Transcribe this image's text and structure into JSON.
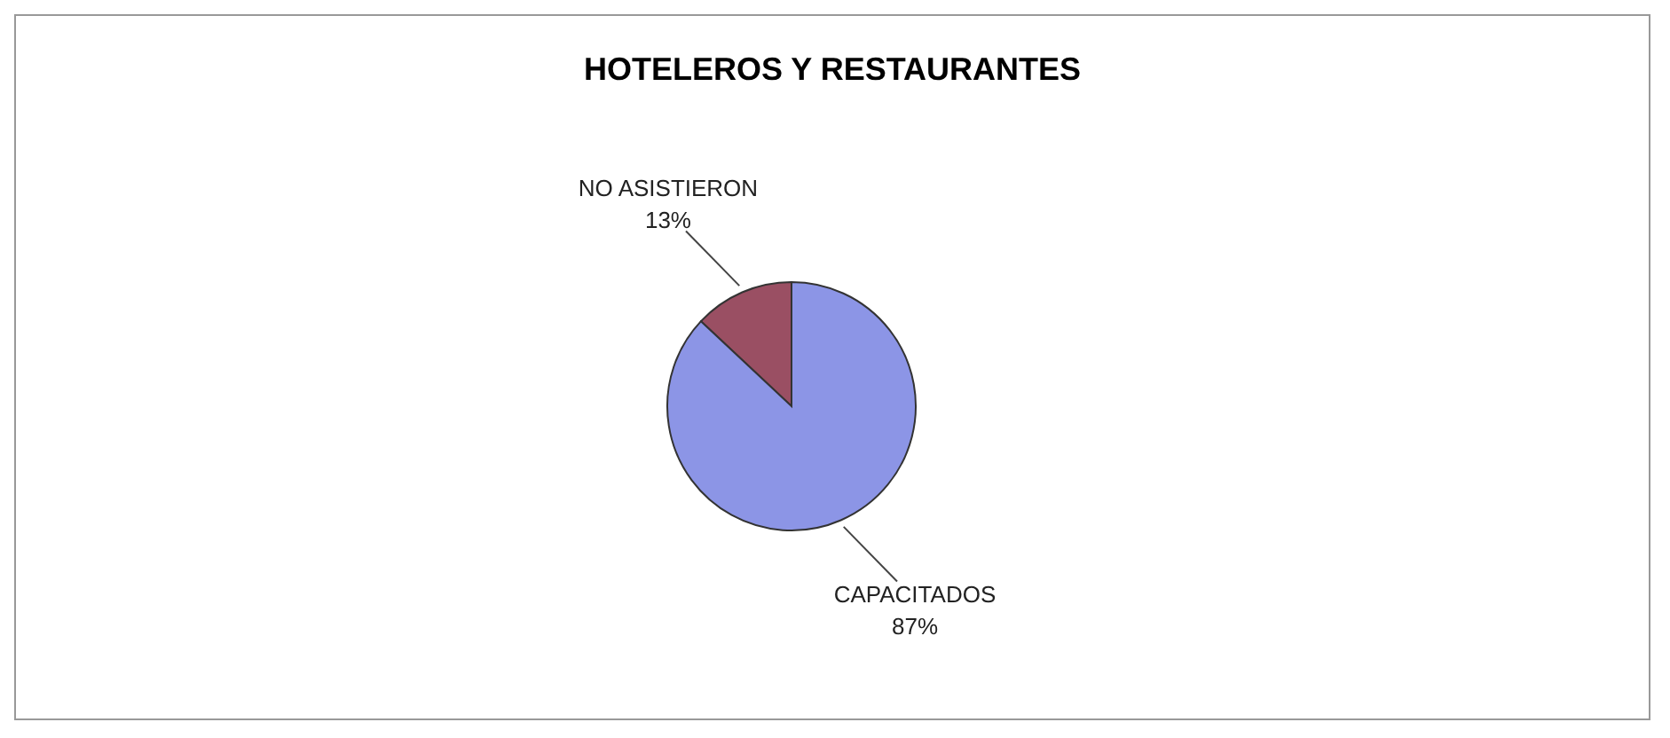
{
  "chart_data": {
    "type": "pie",
    "title": "HOTELEROS Y RESTAURANTES",
    "categories": [
      "NO ASISTIERON",
      "CAPACITADOS"
    ],
    "values": [
      13,
      87
    ],
    "colors": [
      "#9a4f63",
      "#8c95e6"
    ],
    "value_labels": [
      "13%",
      "87%"
    ]
  }
}
